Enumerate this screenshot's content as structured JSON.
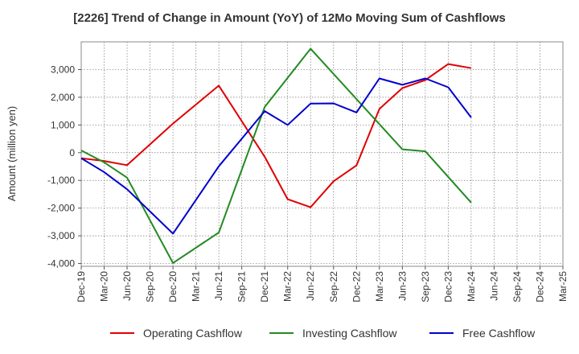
{
  "chart_data": {
    "type": "line",
    "title": "[2226]  Trend of Change in Amount (YoY) of 12Mo Moving Sum of Cashflows",
    "xlabel": "",
    "ylabel": "Amount (million yen)",
    "ylim": [
      -4100,
      4000
    ],
    "yticks": [
      -4000,
      -3000,
      -2000,
      -1000,
      0,
      1000,
      2000,
      3000
    ],
    "ytick_labels": [
      "-4,000",
      "-3,000",
      "-2,000",
      "-1,000",
      "0",
      "1,000",
      "2,000",
      "3,000"
    ],
    "categories": [
      "Dec-19",
      "Mar-20",
      "Jun-20",
      "Sep-20",
      "Dec-20",
      "Mar-21",
      "Jun-21",
      "Sep-21",
      "Dec-21",
      "Mar-22",
      "Jun-22",
      "Sep-22",
      "Dec-22",
      "Mar-23",
      "Jun-23",
      "Sep-23",
      "Dec-23",
      "Mar-24",
      "Jun-24",
      "Sep-24",
      "Dec-24",
      "Mar-25"
    ],
    "grid": true,
    "legend_position": "bottom",
    "series": [
      {
        "name": "Operating Cashflow",
        "color": "#e00000",
        "values": [
          -200,
          -300,
          -450,
          null,
          1050,
          null,
          2420,
          null,
          -150,
          -1680,
          -1970,
          -1030,
          -460,
          1580,
          2330,
          2620,
          3200,
          3050,
          null,
          null,
          null,
          null
        ]
      },
      {
        "name": "Investing Cashflow",
        "color": "#228b22",
        "values": [
          80,
          -350,
          -900,
          null,
          -3980,
          null,
          -2880,
          null,
          1650,
          null,
          3750,
          null,
          null,
          null,
          120,
          50,
          null,
          -1800,
          null,
          null,
          null,
          null
        ]
      },
      {
        "name": "Free Cashflow",
        "color": "#0000cc",
        "values": [
          -200,
          -700,
          -1320,
          null,
          -2920,
          null,
          -490,
          null,
          1500,
          1000,
          1770,
          1780,
          1450,
          2680,
          2450,
          2680,
          2360,
          1270,
          null,
          null,
          null,
          null
        ]
      }
    ]
  }
}
